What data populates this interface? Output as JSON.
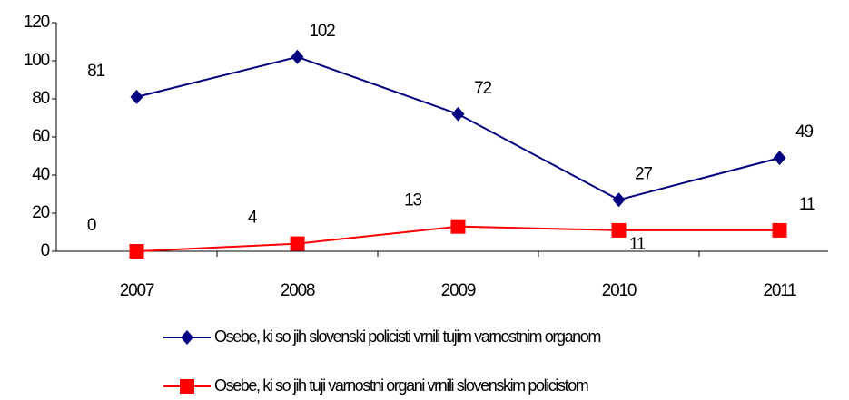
{
  "chart_data": {
    "type": "line",
    "categories": [
      "2007",
      "2008",
      "2009",
      "2010",
      "2011"
    ],
    "series": [
      {
        "name": "Osebe, ki so jih slovenski policisti vrnili tujim varnostnim organom",
        "color": "#000080",
        "marker": "diamond",
        "values": [
          81,
          102,
          72,
          27,
          49
        ]
      },
      {
        "name": "Osebe, ki so jih tuji varnostni organi vrnili slovenskim policistom",
        "color": "#ff0000",
        "marker": "square",
        "values": [
          0,
          4,
          13,
          11,
          11
        ]
      }
    ],
    "ylim": [
      0,
      120
    ],
    "yticks": [
      0,
      20,
      40,
      60,
      80,
      100,
      120
    ],
    "grid": false,
    "legend": "bottom"
  }
}
